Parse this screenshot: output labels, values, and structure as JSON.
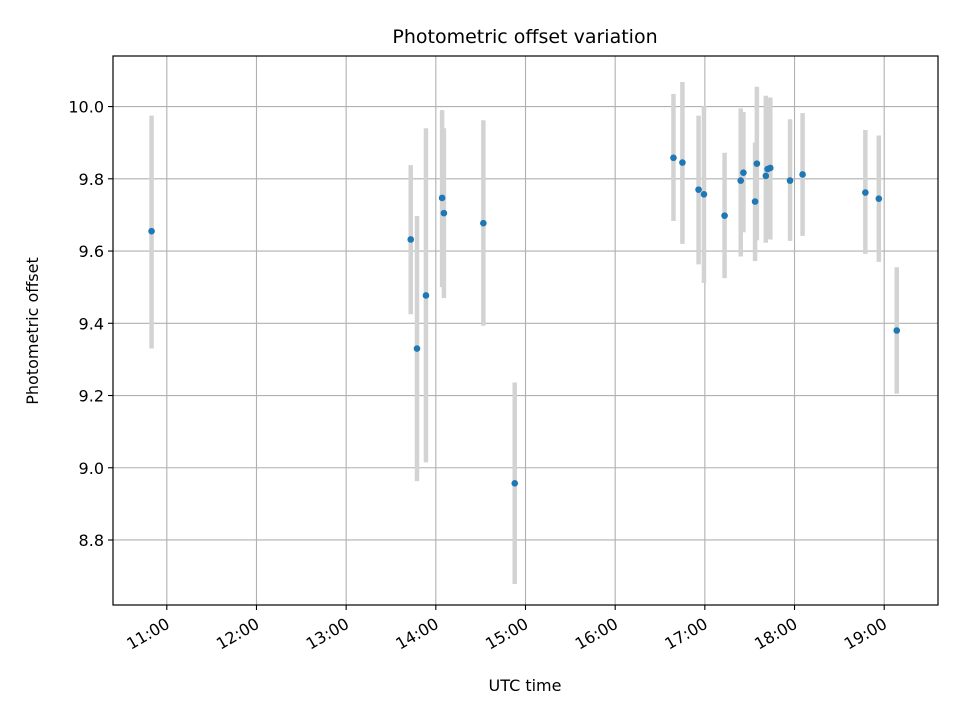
{
  "chart_data": {
    "type": "scatter",
    "title": "Photometric offset variation",
    "xlabel": "UTC time",
    "ylabel": "Photometric offset",
    "x_unit": "hours",
    "xlim": [
      10.4,
      19.6
    ],
    "ylim": [
      8.62,
      10.14
    ],
    "x_ticks": [
      {
        "value": 11,
        "label": "11:00"
      },
      {
        "value": 12,
        "label": "12:00"
      },
      {
        "value": 13,
        "label": "13:00"
      },
      {
        "value": 14,
        "label": "14:00"
      },
      {
        "value": 15,
        "label": "15:00"
      },
      {
        "value": 16,
        "label": "16:00"
      },
      {
        "value": 17,
        "label": "17:00"
      },
      {
        "value": 18,
        "label": "18:00"
      },
      {
        "value": 19,
        "label": "19:00"
      }
    ],
    "y_ticks": [
      {
        "value": 8.8,
        "label": "8.8"
      },
      {
        "value": 9.0,
        "label": "9.0"
      },
      {
        "value": 9.2,
        "label": "9.2"
      },
      {
        "value": 9.4,
        "label": "9.4"
      },
      {
        "value": 9.6,
        "label": "9.6"
      },
      {
        "value": 9.8,
        "label": "9.8"
      },
      {
        "value": 10.0,
        "label": "10.0"
      }
    ],
    "grid": true,
    "marker_color": "#1f77b4",
    "errorbar_color": "#d3d3d3",
    "points": [
      {
        "x": 10.83,
        "y": 9.655,
        "lo": 9.33,
        "hi": 9.975
      },
      {
        "x": 13.72,
        "y": 9.632,
        "lo": 9.425,
        "hi": 9.838
      },
      {
        "x": 13.79,
        "y": 9.33,
        "lo": 8.963,
        "hi": 9.697
      },
      {
        "x": 13.89,
        "y": 9.477,
        "lo": 9.015,
        "hi": 9.94
      },
      {
        "x": 14.07,
        "y": 9.747,
        "lo": 9.5,
        "hi": 9.99
      },
      {
        "x": 14.09,
        "y": 9.705,
        "lo": 9.47,
        "hi": 9.94
      },
      {
        "x": 14.53,
        "y": 9.677,
        "lo": 9.393,
        "hi": 9.962
      },
      {
        "x": 14.88,
        "y": 8.957,
        "lo": 8.678,
        "hi": 9.236
      },
      {
        "x": 16.65,
        "y": 9.858,
        "lo": 9.683,
        "hi": 10.035
      },
      {
        "x": 16.75,
        "y": 9.845,
        "lo": 9.62,
        "hi": 10.068
      },
      {
        "x": 16.93,
        "y": 9.77,
        "lo": 9.563,
        "hi": 9.975
      },
      {
        "x": 16.99,
        "y": 9.757,
        "lo": 9.512,
        "hi": 10.002
      },
      {
        "x": 17.22,
        "y": 9.698,
        "lo": 9.525,
        "hi": 9.872
      },
      {
        "x": 17.4,
        "y": 9.795,
        "lo": 9.585,
        "hi": 9.995
      },
      {
        "x": 17.43,
        "y": 9.817,
        "lo": 9.652,
        "hi": 9.985
      },
      {
        "x": 17.56,
        "y": 9.737,
        "lo": 9.572,
        "hi": 9.9
      },
      {
        "x": 17.58,
        "y": 9.842,
        "lo": 9.63,
        "hi": 10.055
      },
      {
        "x": 17.68,
        "y": 9.808,
        "lo": 9.623,
        "hi": 10.03
      },
      {
        "x": 17.7,
        "y": 9.827,
        "lo": 9.637,
        "hi": 10.022
      },
      {
        "x": 17.73,
        "y": 9.83,
        "lo": 9.632,
        "hi": 10.025
      },
      {
        "x": 17.95,
        "y": 9.795,
        "lo": 9.628,
        "hi": 9.965
      },
      {
        "x": 18.09,
        "y": 9.812,
        "lo": 9.642,
        "hi": 9.982
      },
      {
        "x": 18.79,
        "y": 9.762,
        "lo": 9.592,
        "hi": 9.935
      },
      {
        "x": 18.94,
        "y": 9.745,
        "lo": 9.57,
        "hi": 9.92
      },
      {
        "x": 19.14,
        "y": 9.38,
        "lo": 9.205,
        "hi": 9.555
      }
    ]
  }
}
